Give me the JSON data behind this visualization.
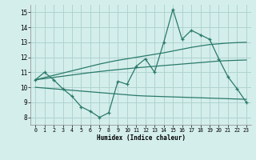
{
  "x": [
    0,
    1,
    2,
    3,
    4,
    5,
    6,
    7,
    8,
    9,
    10,
    11,
    12,
    13,
    14,
    15,
    16,
    17,
    18,
    19,
    20,
    21,
    22,
    23
  ],
  "y_main": [
    10.5,
    11.0,
    10.5,
    9.9,
    9.4,
    8.7,
    8.4,
    8.0,
    8.3,
    10.4,
    10.2,
    11.4,
    11.9,
    11.0,
    13.0,
    15.2,
    13.2,
    13.8,
    13.5,
    13.2,
    11.9,
    10.7,
    9.9,
    9.0
  ],
  "y_upper": [
    10.5,
    10.65,
    10.8,
    10.95,
    11.1,
    11.25,
    11.4,
    11.55,
    11.68,
    11.8,
    11.9,
    12.0,
    12.1,
    12.2,
    12.3,
    12.42,
    12.54,
    12.66,
    12.76,
    12.85,
    12.9,
    12.95,
    12.98,
    13.0
  ],
  "y_mid": [
    10.5,
    10.58,
    10.66,
    10.74,
    10.82,
    10.9,
    10.98,
    11.05,
    11.12,
    11.18,
    11.24,
    11.3,
    11.35,
    11.4,
    11.45,
    11.5,
    11.55,
    11.6,
    11.65,
    11.7,
    11.75,
    11.78,
    11.8,
    11.82
  ],
  "y_lower": [
    10.0,
    9.95,
    9.9,
    9.85,
    9.8,
    9.75,
    9.7,
    9.65,
    9.6,
    9.55,
    9.5,
    9.45,
    9.42,
    9.4,
    9.38,
    9.36,
    9.34,
    9.32,
    9.3,
    9.28,
    9.26,
    9.24,
    9.22,
    9.2
  ],
  "color": "#2a7a6a",
  "bg_color": "#d4eeec",
  "grid_color": "#aed4d0",
  "xlabel": "Humidex (Indice chaleur)",
  "ylim": [
    7.5,
    15.5
  ],
  "xlim": [
    -0.5,
    23.5
  ],
  "yticks": [
    8,
    9,
    10,
    11,
    12,
    13,
    14,
    15
  ],
  "xticks": [
    0,
    1,
    2,
    3,
    4,
    5,
    6,
    7,
    8,
    9,
    10,
    11,
    12,
    13,
    14,
    15,
    16,
    17,
    18,
    19,
    20,
    21,
    22,
    23
  ]
}
